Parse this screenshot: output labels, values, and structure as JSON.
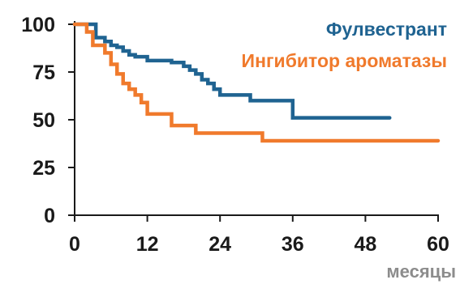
{
  "chart_data": {
    "type": "line",
    "step": true,
    "xlabel": "месяцы",
    "ylabel": "",
    "xlim": [
      0,
      60
    ],
    "ylim": [
      0,
      100
    ],
    "xticks": [
      0,
      12,
      24,
      36,
      48,
      60
    ],
    "yticks": [
      0,
      25,
      50,
      75,
      100
    ],
    "grid": false,
    "legend_position": "top-right",
    "series": [
      {
        "name": "Фулвестрант",
        "color": "#1f6391",
        "x": [
          0,
          2.5,
          3.5,
          5,
          6,
          7,
          8,
          9,
          10,
          12,
          16,
          18,
          19,
          20,
          21,
          22,
          23,
          24,
          29,
          36,
          52
        ],
        "y": [
          100,
          100,
          93,
          91,
          89,
          88,
          86,
          84,
          83,
          81,
          80,
          78,
          76,
          74,
          71,
          69,
          66,
          63,
          60,
          51,
          51
        ]
      },
      {
        "name": "Ингибитор ароматазы",
        "color": "#f07a2c",
        "x": [
          0,
          2,
          3,
          5,
          6,
          7,
          8,
          9,
          10,
          11,
          12,
          15,
          16,
          20,
          31,
          60
        ],
        "y": [
          100,
          96,
          89,
          85,
          79,
          74,
          69,
          66,
          63,
          59,
          53,
          53,
          47,
          43,
          39,
          39
        ]
      }
    ]
  }
}
